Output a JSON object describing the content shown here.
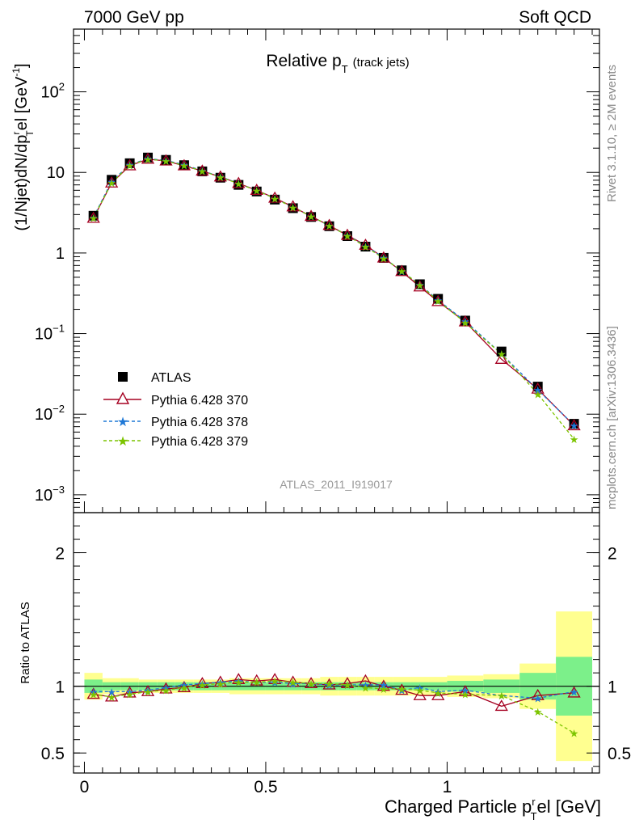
{
  "header": {
    "left": "7000 GeV pp",
    "right": "Soft QCD"
  },
  "side_labels": {
    "top": "Rivet 3.1.10, ≥ 2M events",
    "bottom": "mcplots.cern.ch [arXiv:1306.3436]"
  },
  "analysis_tag": "ATLAS_2011_I919017",
  "colors": {
    "atlas": "#000000",
    "p370": "#a50021",
    "p378": "#1f78d6",
    "p379": "#7cc400",
    "band_inner": "#7cf08a",
    "band_outer": "#ffff90"
  },
  "chart_data": [
    {
      "type": "line",
      "title": "Relative p",
      "title_sub": "T",
      "title_note": "(track jets)",
      "ylabel": {
        "a": "(1/Njet)dN/dp",
        "sub": "T",
        "sup": "r",
        "b": "el [GeV",
        "unit_sup": "-1",
        "c": "]"
      },
      "yscale": "log",
      "ylim": [
        0.0006,
        600
      ],
      "xlim": [
        -0.03,
        1.42
      ],
      "yticks": [
        {
          "v": 0.001,
          "base": "10",
          "exp": "−3"
        },
        {
          "v": 0.01,
          "base": "10",
          "exp": "−2"
        },
        {
          "v": 0.1,
          "base": "10",
          "exp": "−1"
        },
        {
          "v": 1,
          "base": "1",
          "exp": ""
        },
        {
          "v": 10,
          "base": "10",
          "exp": ""
        },
        {
          "v": 100,
          "base": "10",
          "exp": "2"
        }
      ],
      "x": [
        0.025,
        0.075,
        0.125,
        0.175,
        0.225,
        0.275,
        0.325,
        0.375,
        0.425,
        0.475,
        0.525,
        0.575,
        0.625,
        0.675,
        0.725,
        0.775,
        0.825,
        0.875,
        0.925,
        0.975,
        1.05,
        1.15,
        1.25,
        1.35
      ],
      "legend": {
        "position": "middle-left"
      },
      "series": [
        {
          "name": "ATLAS",
          "marker": "square",
          "values": [
            2.9,
            8.1,
            13.0,
            15.3,
            14.3,
            12.3,
            10.3,
            8.6,
            7.0,
            5.8,
            4.6,
            3.6,
            2.8,
            2.15,
            1.62,
            1.2,
            0.87,
            0.61,
            0.41,
            0.27,
            0.145,
            0.06,
            0.022,
            0.0076
          ]
        },
        {
          "name": "Pythia 6.428 370",
          "marker": "triangle",
          "dash": "solid",
          "values": [
            2.7,
            7.4,
            12.1,
            14.6,
            13.9,
            12.1,
            10.4,
            8.8,
            7.3,
            6.0,
            4.8,
            3.75,
            2.85,
            2.2,
            1.66,
            1.25,
            0.87,
            0.59,
            0.38,
            0.25,
            0.14,
            0.048,
            0.0205,
            0.0072
          ]
        },
        {
          "name": "Pythia 6.428 378",
          "marker": "star",
          "dash": "dashed",
          "values": [
            2.77,
            7.75,
            12.45,
            14.85,
            14.05,
            12.45,
            10.5,
            8.85,
            7.3,
            5.95,
            4.75,
            3.7,
            2.85,
            2.18,
            1.65,
            1.22,
            0.88,
            0.59,
            0.405,
            0.26,
            0.143,
            0.056,
            0.02,
            0.0073
          ]
        },
        {
          "name": "Pythia 6.428 379",
          "marker": "star",
          "dash": "dashed",
          "values": [
            2.72,
            7.45,
            12.3,
            14.6,
            13.9,
            12.2,
            10.4,
            8.75,
            7.25,
            5.95,
            4.75,
            3.7,
            2.85,
            2.2,
            1.64,
            1.2,
            0.86,
            0.6,
            0.4,
            0.256,
            0.136,
            0.056,
            0.0178,
            0.0049
          ]
        }
      ]
    },
    {
      "type": "line",
      "ylabel": "Ratio to ATLAS",
      "xlabel": {
        "a": "Charged Particle p",
        "sub": "T",
        "sup": "r",
        "b": "el [GeV]"
      },
      "ylim": [
        0.35,
        2.3
      ],
      "xlim": [
        -0.03,
        1.42
      ],
      "yticks": [
        {
          "v": 0.5,
          "label": "0.5"
        },
        {
          "v": 1,
          "label": "1"
        },
        {
          "v": 2,
          "label": "2"
        }
      ],
      "xticks": [
        {
          "v": 0,
          "label": "0"
        },
        {
          "v": 0.5,
          "label": "0.5"
        },
        {
          "v": 1,
          "label": "1"
        }
      ],
      "bins": [
        [
          0.0,
          0.05
        ],
        [
          0.05,
          0.1
        ],
        [
          0.1,
          0.15
        ],
        [
          0.15,
          0.2
        ],
        [
          0.2,
          0.25
        ],
        [
          0.25,
          0.3
        ],
        [
          0.3,
          0.35
        ],
        [
          0.35,
          0.4
        ],
        [
          0.4,
          0.45
        ],
        [
          0.45,
          0.5
        ],
        [
          0.5,
          0.55
        ],
        [
          0.55,
          0.6
        ],
        [
          0.6,
          0.65
        ],
        [
          0.65,
          0.7
        ],
        [
          0.7,
          0.75
        ],
        [
          0.75,
          0.8
        ],
        [
          0.8,
          0.85
        ],
        [
          0.85,
          0.9
        ],
        [
          0.9,
          0.95
        ],
        [
          0.95,
          1.0
        ],
        [
          1.0,
          1.1
        ],
        [
          1.1,
          1.2
        ],
        [
          1.2,
          1.3
        ],
        [
          1.3,
          1.4
        ]
      ],
      "band_inner": [
        0.05,
        0.03,
        0.03,
        0.03,
        0.03,
        0.03,
        0.03,
        0.03,
        0.03,
        0.03,
        0.03,
        0.03,
        0.03,
        0.03,
        0.03,
        0.03,
        0.03,
        0.03,
        0.03,
        0.03,
        0.04,
        0.05,
        0.1,
        0.22
      ],
      "band_outer": [
        0.1,
        0.06,
        0.06,
        0.05,
        0.05,
        0.05,
        0.05,
        0.05,
        0.06,
        0.06,
        0.06,
        0.06,
        0.06,
        0.07,
        0.07,
        0.07,
        0.07,
        0.07,
        0.07,
        0.07,
        0.08,
        0.09,
        0.17,
        0.56
      ],
      "x": [
        0.025,
        0.075,
        0.125,
        0.175,
        0.225,
        0.275,
        0.325,
        0.375,
        0.425,
        0.475,
        0.525,
        0.575,
        0.625,
        0.675,
        0.725,
        0.775,
        0.825,
        0.875,
        0.925,
        0.975,
        1.05,
        1.15,
        1.25,
        1.35
      ],
      "series": [
        {
          "name": "Pythia 6.428 370",
          "marker": "triangle",
          "dash": "solid",
          "values": [
            0.94,
            0.92,
            0.95,
            0.96,
            0.98,
            0.99,
            1.02,
            1.03,
            1.05,
            1.04,
            1.05,
            1.03,
            1.02,
            1.01,
            1.02,
            1.04,
            1.0,
            0.97,
            0.93,
            0.93,
            0.96,
            0.85,
            0.93,
            0.95
          ]
        },
        {
          "name": "Pythia 6.428 378",
          "marker": "star",
          "dash": "dashed",
          "values": [
            0.96,
            0.96,
            0.96,
            0.97,
            0.99,
            1.01,
            1.02,
            1.03,
            1.04,
            1.03,
            1.03,
            1.02,
            1.02,
            1.01,
            1.01,
            1.01,
            1.01,
            0.97,
            0.99,
            0.96,
            0.97,
            0.93,
            0.91,
            0.96
          ]
        },
        {
          "name": "Pythia 6.428 379",
          "marker": "star",
          "dash": "dashed",
          "values": [
            0.94,
            0.92,
            0.94,
            0.96,
            0.97,
            0.99,
            1.01,
            1.02,
            1.03,
            1.03,
            1.04,
            1.03,
            1.02,
            1.02,
            1.01,
            0.99,
            0.98,
            0.98,
            0.97,
            0.95,
            0.94,
            0.93,
            0.81,
            0.65
          ]
        }
      ]
    }
  ]
}
